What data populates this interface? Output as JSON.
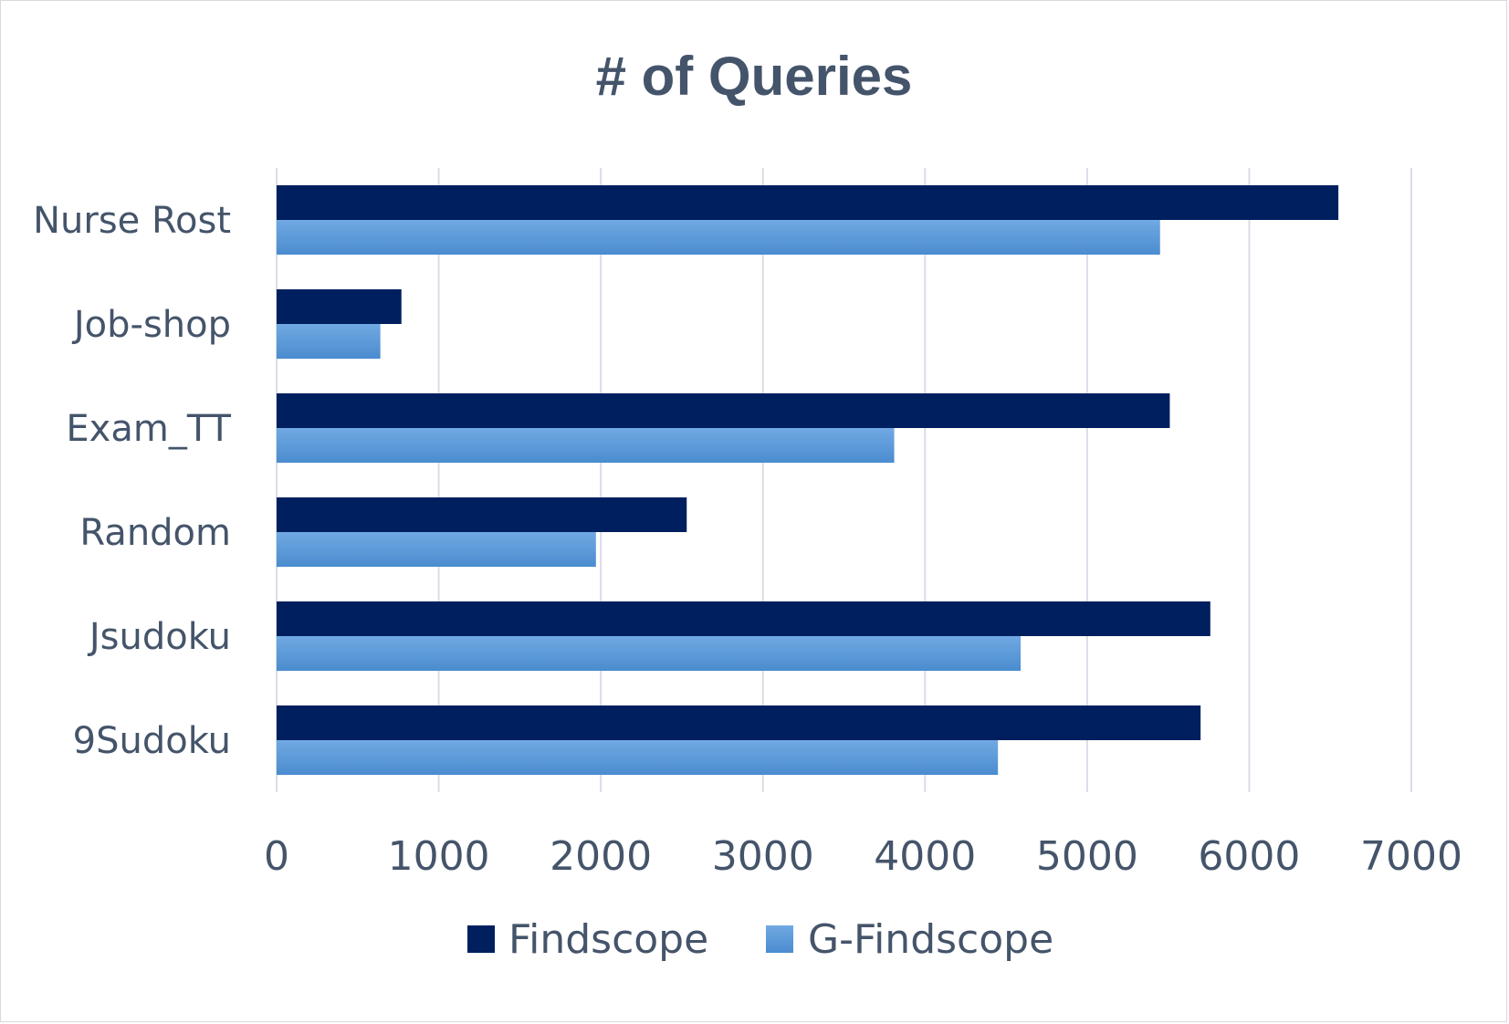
{
  "chart_data": {
    "type": "bar",
    "orientation": "horizontal",
    "title": "# of Queries",
    "categories": [
      "Nurse Rost",
      "Job-shop",
      "Exam_TT",
      "Random",
      "Jsudoku",
      "9Sudoku"
    ],
    "series": [
      {
        "name": "Findscope",
        "values": [
          6550,
          770,
          5510,
          2530,
          5760,
          5700
        ],
        "color": "#001f5f"
      },
      {
        "name": "G-Findscope",
        "values": [
          5450,
          640,
          3810,
          1970,
          4590,
          4450
        ],
        "color": "#5b9bd5"
      }
    ],
    "xlim": [
      0,
      7000
    ],
    "xticks": [
      0,
      1000,
      2000,
      3000,
      4000,
      5000,
      6000,
      7000
    ],
    "grid": true,
    "legend_position": "bottom"
  }
}
